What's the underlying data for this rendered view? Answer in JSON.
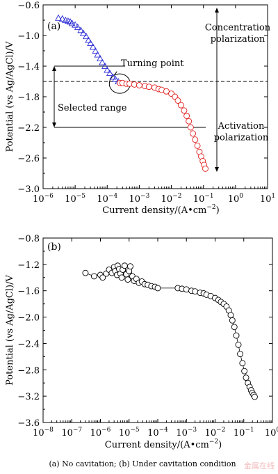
{
  "chart_data": [
    {
      "type": "scatter",
      "panel_label": "(a)",
      "xlabel": "Current density/(A•cm",
      "xlabel_exp": "−2",
      "xlabel_end": ")",
      "ylabel": "Potential (vs Ag/AgCl)/V",
      "x_scale": "log",
      "xlim": [
        1e-06,
        10
      ],
      "ylim": [
        -3.0,
        -0.6
      ],
      "x_ticks": [
        {
          "value": 1e-06,
          "base": "10",
          "exp": "−6"
        },
        {
          "value": 1e-05,
          "base": "10",
          "exp": "−5"
        },
        {
          "value": 0.0001,
          "base": "10",
          "exp": "−4"
        },
        {
          "value": 0.001,
          "base": "10",
          "exp": "−3"
        },
        {
          "value": 0.01,
          "base": "10",
          "exp": "−2"
        },
        {
          "value": 0.1,
          "base": "10",
          "exp": "−1"
        },
        {
          "value": 1,
          "base": "10",
          "exp": "0"
        },
        {
          "value": 10,
          "base": "10",
          "exp": "1"
        }
      ],
      "y_ticks": [
        {
          "value": -0.6,
          "label": "−0.6"
        },
        {
          "value": -1.0,
          "label": "−1.0"
        },
        {
          "value": -1.4,
          "label": "−1.4"
        },
        {
          "value": -1.8,
          "label": "−1.8"
        },
        {
          "value": -2.2,
          "label": "−2.2"
        },
        {
          "value": -2.6,
          "label": "−2.6"
        },
        {
          "value": -3.0,
          "label": "−3.0"
        }
      ],
      "series": [
        {
          "marker": "triangle",
          "color": "#2b2bd6",
          "points": [
            [
              3e-06,
              -0.77
            ],
            [
              4e-06,
              -0.78
            ],
            [
              5e-06,
              -0.8
            ],
            [
              6e-06,
              -0.81
            ],
            [
              7e-06,
              -0.82
            ],
            [
              8e-06,
              -0.84
            ],
            [
              1e-05,
              -0.86
            ],
            [
              1.2e-05,
              -0.89
            ],
            [
              1.5e-05,
              -0.93
            ],
            [
              1.8e-05,
              -0.97
            ],
            [
              2.2e-05,
              -1.01
            ],
            [
              2.6e-05,
              -1.06
            ],
            [
              3e-05,
              -1.1
            ],
            [
              3.6e-05,
              -1.15
            ],
            [
              4.3e-05,
              -1.2
            ],
            [
              5e-05,
              -1.25
            ],
            [
              6e-05,
              -1.3
            ],
            [
              7e-05,
              -1.35
            ],
            [
              8.5e-05,
              -1.4
            ],
            [
              0.0001,
              -1.45
            ],
            [
              0.00012,
              -1.49
            ],
            [
              0.00015,
              -1.54
            ],
            [
              0.00018,
              -1.57
            ],
            [
              0.00022,
              -1.6
            ]
          ]
        },
        {
          "marker": "circle",
          "color": "#e02020",
          "points": [
            [
              0.00025,
              -1.62
            ],
            [
              0.0003,
              -1.62
            ],
            [
              0.0004,
              -1.63
            ],
            [
              0.0005,
              -1.63
            ],
            [
              0.0007,
              -1.64
            ],
            [
              0.001,
              -1.65
            ],
            [
              0.0015,
              -1.66
            ],
            [
              0.002,
              -1.67
            ],
            [
              0.003,
              -1.68
            ],
            [
              0.004,
              -1.7
            ],
            [
              0.005,
              -1.71
            ],
            [
              0.007,
              -1.73
            ],
            [
              0.01,
              -1.76
            ],
            [
              0.013,
              -1.8
            ],
            [
              0.016,
              -1.85
            ],
            [
              0.02,
              -1.91
            ],
            [
              0.025,
              -1.98
            ],
            [
              0.03,
              -2.05
            ],
            [
              0.035,
              -2.12
            ],
            [
              0.04,
              -2.2
            ],
            [
              0.047,
              -2.28
            ],
            [
              0.055,
              -2.36
            ],
            [
              0.065,
              -2.44
            ],
            [
              0.075,
              -2.52
            ],
            [
              0.085,
              -2.58
            ],
            [
              0.095,
              -2.64
            ],
            [
              0.105,
              -2.69
            ],
            [
              0.115,
              -2.74
            ]
          ]
        }
      ],
      "annotations": {
        "turning_point": "Turning point",
        "turning_point_value": [
          0.0003,
          -1.61
        ],
        "selected_range": "Selected range",
        "concentration_line1": "Concentration",
        "concentration_line2": "polarization",
        "activation_line1": "Activation",
        "activation_line2": "polarization",
        "dashed_level": -1.6,
        "range_upper": -1.4,
        "range_lower": -2.2
      }
    },
    {
      "type": "scatter",
      "panel_label": "(b)",
      "xlabel": "Current density/(A•cm",
      "xlabel_exp": "−2",
      "xlabel_end": ")",
      "ylabel": "Potential (vs Ag/AgCl)/V",
      "x_scale": "log",
      "xlim": [
        1e-08,
        1
      ],
      "ylim": [
        -3.6,
        -0.8
      ],
      "x_ticks": [
        {
          "value": 1e-08,
          "base": "10",
          "exp": "−8"
        },
        {
          "value": 1e-07,
          "base": "10",
          "exp": "−7"
        },
        {
          "value": 1e-06,
          "base": "10",
          "exp": "−6"
        },
        {
          "value": 1e-05,
          "base": "10",
          "exp": "−5"
        },
        {
          "value": 0.0001,
          "base": "10",
          "exp": "−4"
        },
        {
          "value": 0.001,
          "base": "10",
          "exp": "−3"
        },
        {
          "value": 0.01,
          "base": "10",
          "exp": "−2"
        },
        {
          "value": 0.1,
          "base": "10",
          "exp": "−1"
        },
        {
          "value": 1,
          "base": "10",
          "exp": "0"
        }
      ],
      "y_ticks": [
        {
          "value": -0.8,
          "label": "−0.8"
        },
        {
          "value": -1.2,
          "label": "−1.2"
        },
        {
          "value": -1.6,
          "label": "−1.6"
        },
        {
          "value": -2.0,
          "label": "−2.0"
        },
        {
          "value": -2.4,
          "label": "−2.4"
        },
        {
          "value": -2.8,
          "label": "−2.8"
        },
        {
          "value": -3.2,
          "label": "−3.2"
        },
        {
          "value": -3.6,
          "label": "−3.6"
        }
      ],
      "series": [
        {
          "marker": "circle",
          "color": "#000000",
          "points": [
            [
              3e-07,
              -1.33
            ],
            [
              6e-07,
              -1.38
            ],
            [
              1e-06,
              -1.36
            ],
            [
              1.2e-06,
              -1.4
            ],
            [
              1.6e-06,
              -1.34
            ],
            [
              2e-06,
              -1.28
            ],
            [
              2.5e-06,
              -1.33
            ],
            [
              3e-06,
              -1.24
            ],
            [
              3.3e-06,
              -1.3
            ],
            [
              3.8e-06,
              -1.36
            ],
            [
              4e-06,
              -1.22
            ],
            [
              4.5e-06,
              -1.27
            ],
            [
              5e-06,
              -1.34
            ],
            [
              5.5e-06,
              -1.4
            ],
            [
              6e-06,
              -1.28
            ],
            [
              7e-06,
              -1.22
            ],
            [
              8e-06,
              -1.35
            ],
            [
              9e-06,
              -1.43
            ],
            [
              1e-05,
              -1.3
            ],
            [
              1.1e-05,
              -1.23
            ],
            [
              1.3e-05,
              -1.38
            ],
            [
              1.5e-05,
              -1.45
            ],
            [
              1.8e-05,
              -1.42
            ],
            [
              2.2e-05,
              -1.48
            ],
            [
              2.8e-05,
              -1.46
            ],
            [
              3.5e-05,
              -1.5
            ],
            [
              4.5e-05,
              -1.51
            ],
            [
              6e-05,
              -1.53
            ],
            [
              8e-05,
              -1.54
            ],
            [
              0.0001,
              -1.56
            ],
            [
              0.0005,
              -1.56
            ],
            [
              0.0007,
              -1.57
            ],
            [
              0.001,
              -1.58
            ],
            [
              0.0015,
              -1.6
            ],
            [
              0.002,
              -1.61
            ],
            [
              0.003,
              -1.63
            ],
            [
              0.004,
              -1.64
            ],
            [
              0.005,
              -1.66
            ],
            [
              0.007,
              -1.68
            ],
            [
              0.01,
              -1.71
            ],
            [
              0.013,
              -1.74
            ],
            [
              0.016,
              -1.77
            ],
            [
              0.02,
              -1.8
            ],
            [
              0.025,
              -1.84
            ],
            [
              0.03,
              -1.9
            ],
            [
              0.035,
              -1.97
            ],
            [
              0.04,
              -2.05
            ],
            [
              0.047,
              -2.15
            ],
            [
              0.055,
              -2.28
            ],
            [
              0.065,
              -2.42
            ],
            [
              0.075,
              -2.56
            ],
            [
              0.09,
              -2.7
            ],
            [
              0.105,
              -2.82
            ],
            [
              0.12,
              -2.92
            ],
            [
              0.14,
              -3.0
            ],
            [
              0.16,
              -3.06
            ],
            [
              0.18,
              -3.11
            ],
            [
              0.2,
              -3.15
            ],
            [
              0.22,
              -3.18
            ],
            [
              0.24,
              -3.21
            ]
          ]
        }
      ]
    }
  ],
  "caption": "(a) No cavitation; (b) Under cavitation condition",
  "watermark": "金属在线"
}
